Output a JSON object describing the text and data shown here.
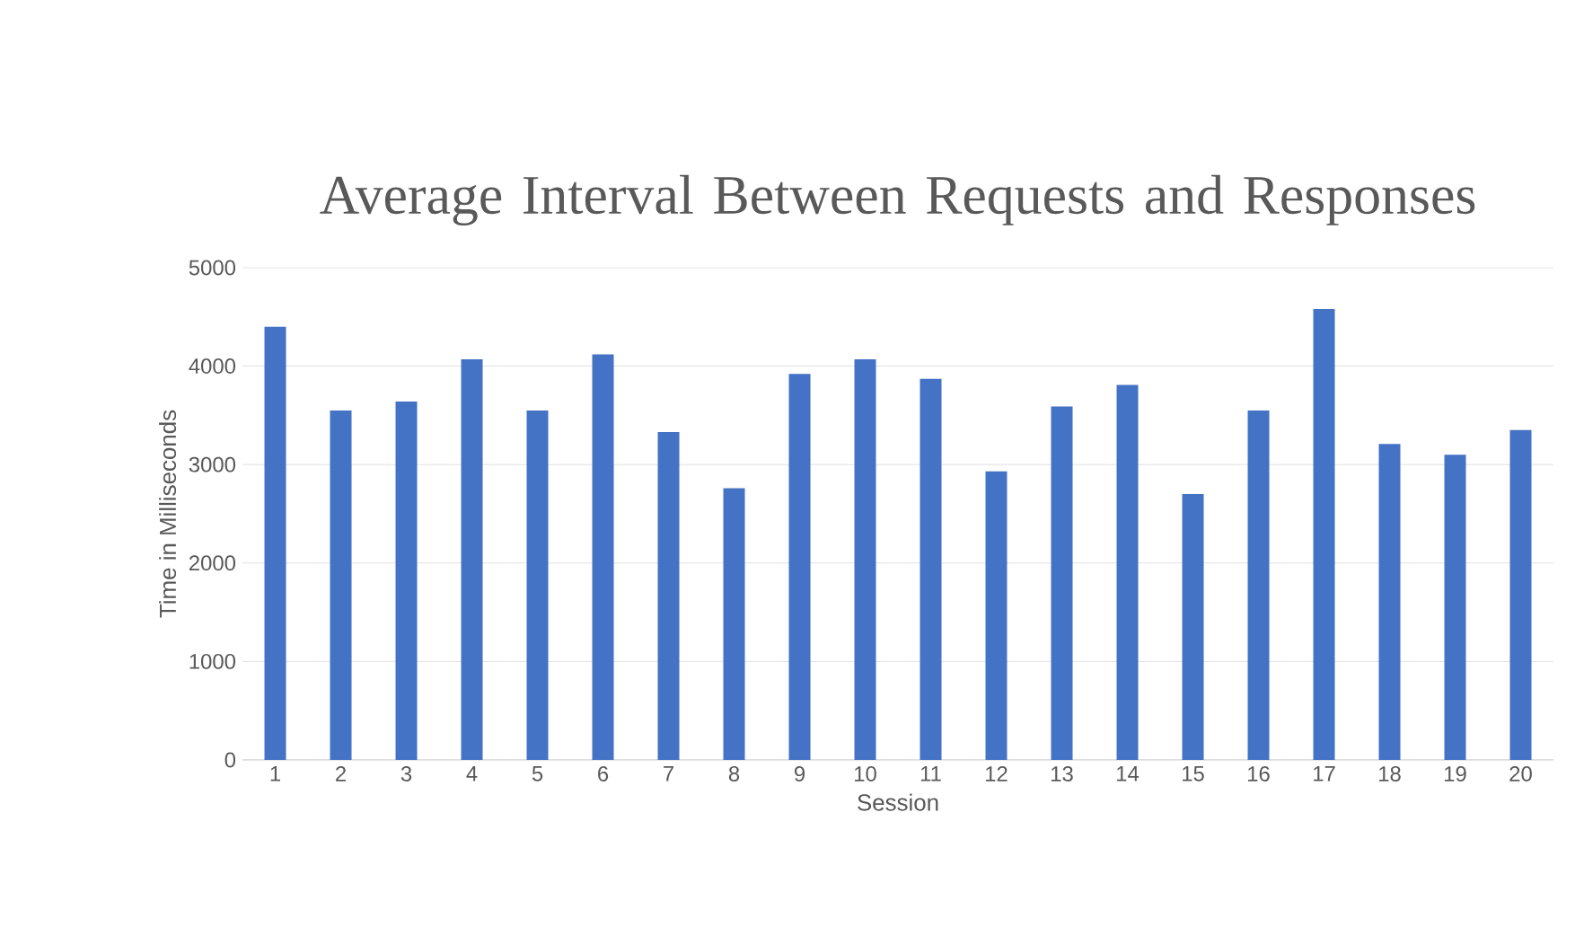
{
  "chart_data": {
    "type": "bar",
    "title": "Average Interval Between Requests and Responses",
    "xlabel": "Session",
    "ylabel": "Time in Milliseconds",
    "categories": [
      "1",
      "2",
      "3",
      "4",
      "5",
      "6",
      "7",
      "8",
      "9",
      "10",
      "11",
      "12",
      "13",
      "14",
      "15",
      "16",
      "17",
      "18",
      "19",
      "20"
    ],
    "values": [
      4400,
      3550,
      3640,
      4070,
      3550,
      4120,
      3330,
      2760,
      3920,
      4070,
      3870,
      2930,
      3590,
      3810,
      2700,
      3550,
      4580,
      3210,
      3100,
      3350
    ],
    "color": "#4472c4",
    "ylim": [
      0,
      5000
    ],
    "yticks": [
      0,
      1000,
      2000,
      3000,
      4000,
      5000
    ],
    "grid": "y"
  }
}
